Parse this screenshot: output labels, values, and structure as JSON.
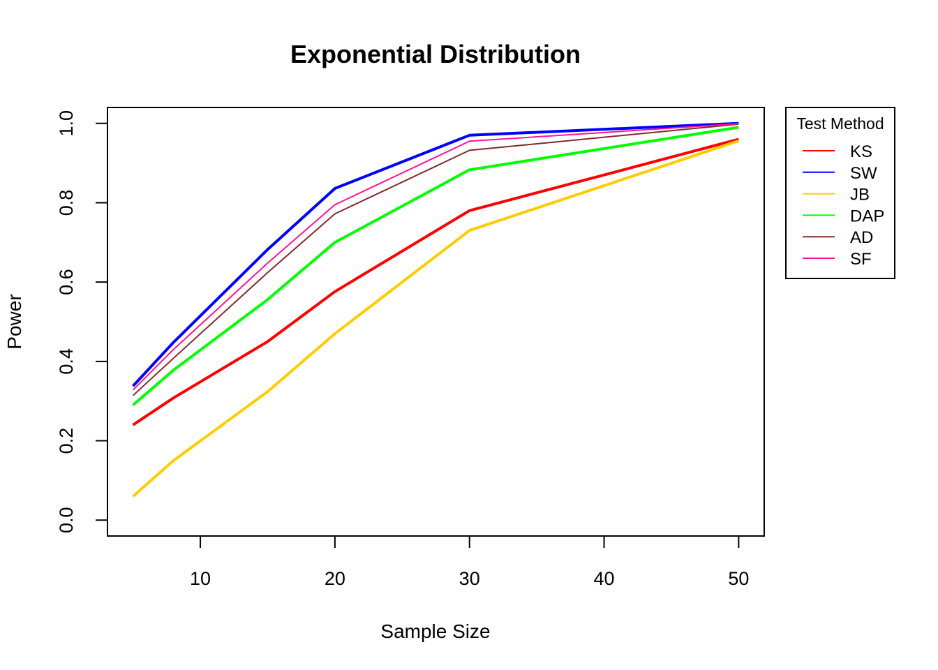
{
  "chart_data": {
    "type": "line",
    "title": "Exponential Distribution",
    "xlabel": "Sample Size",
    "ylabel": "Power",
    "x": [
      5,
      8,
      15,
      20,
      30,
      50
    ],
    "xlim": [
      3.1,
      51.9
    ],
    "ylim": [
      -0.04,
      1.04
    ],
    "xticks": [
      10,
      20,
      30,
      40,
      50
    ],
    "yticks": [
      0.0,
      0.2,
      0.4,
      0.6,
      0.8,
      1.0
    ],
    "xtick_labels": [
      "10",
      "20",
      "30",
      "40",
      "50"
    ],
    "ytick_labels": [
      "0.0",
      "0.2",
      "0.4",
      "0.6",
      "0.8",
      "1.0"
    ],
    "grid": false,
    "legend": {
      "title": "Test Method",
      "position": "right-outside-top"
    },
    "series": [
      {
        "name": "KS",
        "color": "#FF0000",
        "width": "thick",
        "values": [
          0.24,
          0.308,
          0.45,
          0.576,
          0.78,
          0.96
        ]
      },
      {
        "name": "SW",
        "color": "#0000FF",
        "width": "thick",
        "values": [
          0.338,
          0.448,
          0.682,
          0.836,
          0.97,
          1.0
        ]
      },
      {
        "name": "JB",
        "color": "#FFCC00",
        "width": "thick",
        "values": [
          0.06,
          0.15,
          0.324,
          0.47,
          0.73,
          0.956
        ]
      },
      {
        "name": "DAP",
        "color": "#00FF00",
        "width": "thick",
        "values": [
          0.29,
          0.378,
          0.556,
          0.7,
          0.883,
          0.99
        ]
      },
      {
        "name": "AD",
        "color": "#7F2A2A",
        "width": "thin",
        "values": [
          0.314,
          0.408,
          0.624,
          0.772,
          0.932,
          0.998
        ]
      },
      {
        "name": "SF",
        "color": "#FF1493",
        "width": "thin",
        "values": [
          0.328,
          0.43,
          0.648,
          0.795,
          0.955,
          0.999
        ]
      }
    ]
  }
}
